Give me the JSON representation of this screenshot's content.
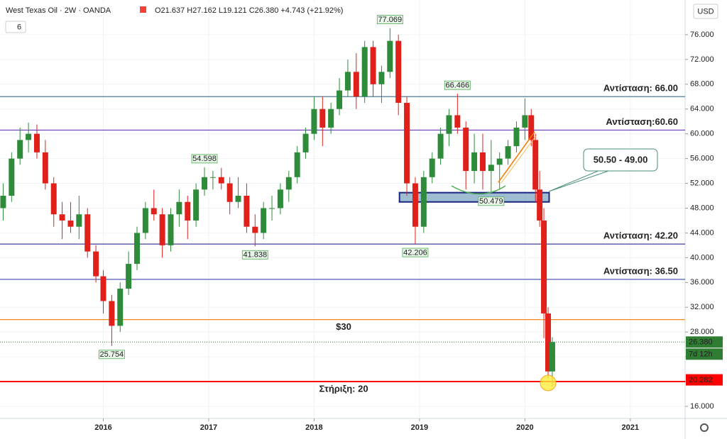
{
  "chart_data": {
    "type": "candlestick",
    "header": {
      "title": "West Texas Oil · 2W · OANDA",
      "quote": "O21.637  H27.162  L19.121  C26.380  +4.743 (+21.92%)",
      "indicator": "6"
    },
    "currency": "USD",
    "up_color": "#2e8b3a",
    "down_color": "#e0201b",
    "x": [
      2015.05,
      2015.13,
      2015.21,
      2015.29,
      2015.37,
      2015.45,
      2015.53,
      2015.61,
      2015.69,
      2015.77,
      2015.85,
      2015.93,
      2016.0,
      2016.08,
      2016.16,
      2016.24,
      2016.32,
      2016.4,
      2016.48,
      2016.56,
      2016.64,
      2016.72,
      2016.8,
      2016.88,
      2016.96,
      2017.04,
      2017.12,
      2017.2,
      2017.28,
      2017.36,
      2017.44,
      2017.52,
      2017.6,
      2017.68,
      2017.76,
      2017.84,
      2017.92,
      2018.0,
      2018.08,
      2018.16,
      2018.24,
      2018.32,
      2018.4,
      2018.48,
      2018.56,
      2018.64,
      2018.72,
      2018.8,
      2018.88,
      2018.96,
      2019.04,
      2019.12,
      2019.2,
      2019.28,
      2019.36,
      2019.44,
      2019.52,
      2019.6,
      2019.68,
      2019.76,
      2019.84,
      2019.92,
      2020.0,
      2020.06,
      2020.1,
      2020.14,
      2020.18,
      2020.22,
      2020.26
    ],
    "open": [
      48,
      50,
      56,
      59,
      60,
      57,
      52,
      47,
      46,
      45,
      47,
      41,
      37,
      33,
      29,
      35,
      39,
      44,
      48,
      47,
      42,
      47,
      49,
      46,
      51,
      53,
      53,
      52,
      49,
      50,
      45,
      44,
      48,
      48,
      51,
      53,
      57,
      60,
      64,
      61,
      64,
      67,
      70,
      66,
      74,
      68,
      70,
      75,
      65,
      52,
      45,
      53,
      56,
      60,
      63,
      61,
      54,
      57,
      54,
      55,
      56,
      58,
      61,
      63,
      59,
      51,
      46,
      31,
      21.637
    ],
    "high": [
      52,
      57,
      61,
      61.8,
      61.5,
      59,
      53,
      49,
      49,
      50,
      48,
      42,
      38,
      34,
      36,
      41,
      45,
      49,
      51,
      48,
      48,
      51,
      50,
      52,
      54.598,
      54,
      54.5,
      53,
      53,
      52,
      47,
      49,
      50,
      52,
      54,
      58,
      61,
      66,
      66,
      65,
      69,
      72,
      73,
      75,
      75,
      71,
      77.069,
      76,
      66,
      53,
      54,
      57,
      61,
      64,
      66.466,
      62,
      60,
      60,
      59,
      57,
      59,
      62,
      65.7,
      64,
      60,
      54,
      48,
      32,
      27.162
    ],
    "low": [
      46,
      49,
      55,
      57,
      56,
      51,
      45,
      43,
      44,
      43,
      40,
      36,
      31,
      25.754,
      28,
      34,
      38,
      43,
      46,
      40,
      41,
      45,
      43,
      45,
      50,
      51,
      51,
      47,
      48,
      44,
      41.838,
      43,
      46,
      47,
      49,
      52,
      56,
      59,
      58,
      60,
      63,
      66,
      64,
      65,
      66,
      65,
      69,
      63,
      50,
      42.206,
      44,
      52,
      55,
      58,
      60,
      51,
      52,
      51,
      50.479,
      51,
      55,
      57,
      59,
      58,
      49,
      45,
      27,
      20.5,
      19.121
    ],
    "close": [
      50,
      56,
      59,
      60,
      57,
      52,
      47,
      46,
      45,
      47,
      41,
      37,
      33,
      29,
      35,
      39,
      44,
      48,
      47,
      42,
      47,
      49,
      46,
      51,
      53,
      53,
      52,
      49,
      50,
      45,
      44,
      48,
      48,
      51,
      53,
      57,
      60,
      64,
      61,
      64,
      67,
      70,
      66,
      74,
      68,
      70,
      75,
      65,
      52,
      45,
      53,
      56,
      60,
      63,
      61,
      54,
      57,
      54,
      55,
      56,
      58,
      61,
      63,
      59,
      51,
      46,
      31,
      21.637,
      26.38
    ],
    "xlim": [
      2015.02,
      2021.52
    ],
    "xticks": [
      2016,
      2017,
      2018,
      2019,
      2020,
      2021
    ],
    "ylim": [
      14.05,
      81.6
    ],
    "yticks": [
      {
        "value": 16,
        "label": "16.000"
      },
      {
        "value": 20,
        "label": "20.000"
      },
      {
        "value": 24,
        "label": "24.000"
      },
      {
        "value": 28,
        "label": "28.000"
      },
      {
        "value": 32,
        "label": "32.000"
      },
      {
        "value": 36,
        "label": "36.000"
      },
      {
        "value": 40,
        "label": "40.000"
      },
      {
        "value": 44,
        "label": "44.000"
      },
      {
        "value": 48,
        "label": "48.000"
      },
      {
        "value": 52,
        "label": "52.000"
      },
      {
        "value": 56,
        "label": "56.000"
      },
      {
        "value": 60,
        "label": "60.000"
      },
      {
        "value": 64,
        "label": "64.000"
      },
      {
        "value": 68,
        "label": "68.000"
      },
      {
        "value": 72,
        "label": "72.000"
      },
      {
        "value": 76,
        "label": "76.000"
      }
    ],
    "levels": [
      {
        "value": 66,
        "label": "Αντίσταση: 66.00",
        "color": "#4a7f9c",
        "text_color": "#4527a0",
        "label_position": "right"
      },
      {
        "value": 60.6,
        "label": "Αντίσταση:60.60",
        "color": "#673ab7",
        "text_color": "#6a2ea8",
        "label_position": "right"
      },
      {
        "value": 42.2,
        "label": "Αντίσταση: 42.20",
        "color": "#3f3fa8",
        "text_color": "#6a2ea8",
        "label_position": "right"
      },
      {
        "value": 36.5,
        "label": "Αντίσταση: 36.50",
        "color": "#3949ab",
        "text_color": "#6a2ea8",
        "label_position": "right"
      },
      {
        "value": 30,
        "label": "$30",
        "color": "#f57c00",
        "text_color": "#f5a000",
        "label_position": "center"
      },
      {
        "value": 20,
        "label": "Στήριξη: 20",
        "color": "#ff0000",
        "text_color": "#e53935",
        "label_position": "center"
      }
    ],
    "zone": {
      "low": 49,
      "high": 50.5,
      "x_start": 2018.81,
      "x_end": 2020.23,
      "label": "50.50 - 49.00"
    },
    "extremes": [
      {
        "x": 2016.08,
        "value": 25.754,
        "position": "below"
      },
      {
        "x": 2016.96,
        "value": 54.598,
        "position": "above"
      },
      {
        "x": 2017.44,
        "value": 41.838,
        "position": "below"
      },
      {
        "x": 2018.72,
        "value": 77.069,
        "position": "above"
      },
      {
        "x": 2018.96,
        "value": 42.206,
        "position": "below"
      },
      {
        "x": 2019.36,
        "value": 66.466,
        "position": "above"
      },
      {
        "x": 2019.68,
        "value": 50.479,
        "position": "below"
      }
    ],
    "price_badges": [
      {
        "value": 26.38,
        "label": "26.380",
        "color": "#2e7d32"
      },
      {
        "value": 20.282,
        "label": "20.282",
        "color": "#ff0000"
      }
    ],
    "countdown": "7d 12h"
  }
}
